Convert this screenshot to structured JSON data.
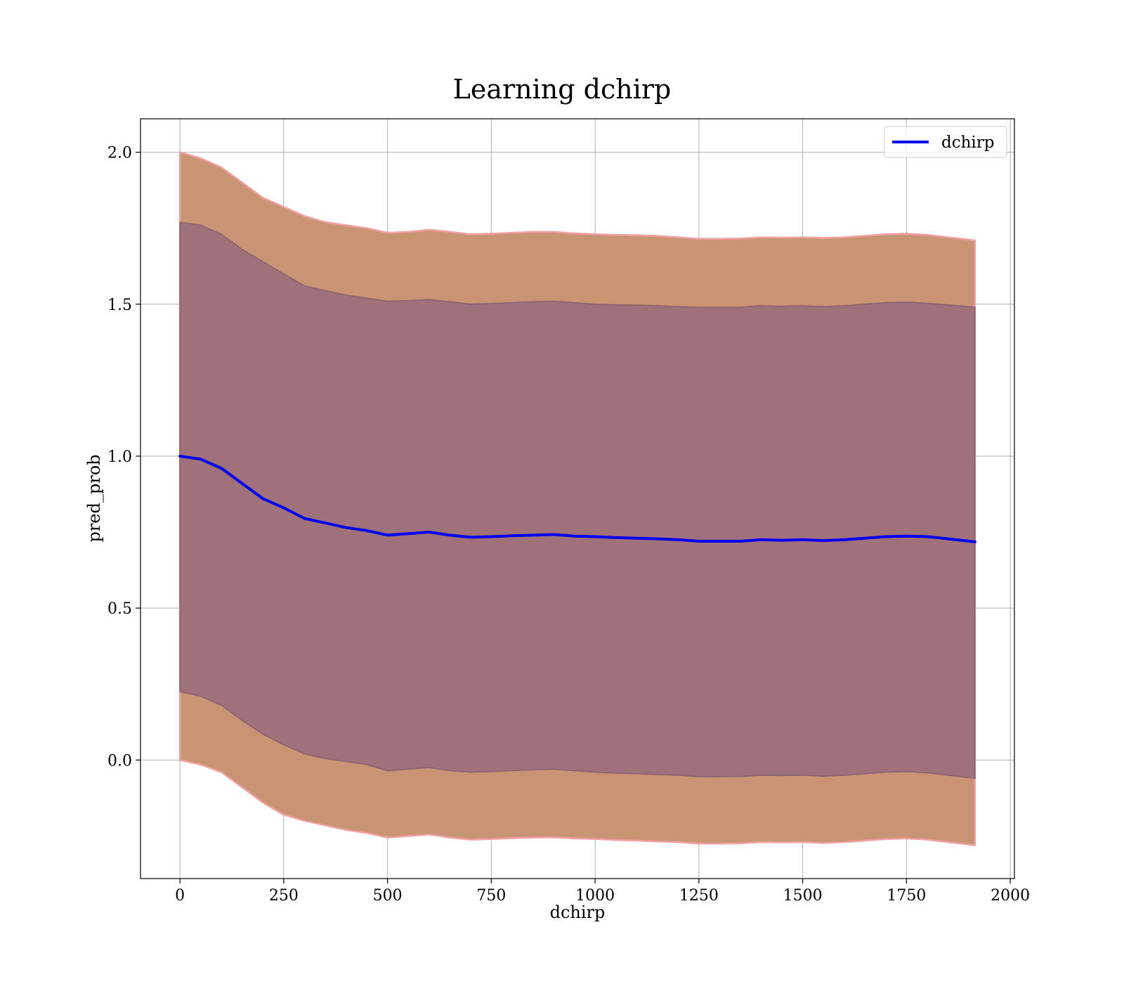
{
  "chart_data": {
    "type": "line",
    "title": "Learning dchirp",
    "xlabel": "dchirp",
    "ylabel": "pred_prob",
    "xlim": [
      -95,
      2010
    ],
    "ylim": [
      -0.39,
      2.11
    ],
    "xticks": [
      0,
      250,
      500,
      750,
      1000,
      1250,
      1500,
      1750,
      2000
    ],
    "yticks": [
      0.0,
      0.5,
      1.0,
      1.5,
      2.0
    ],
    "xtick_labels": [
      "0",
      "250",
      "500",
      "750",
      "1000",
      "1250",
      "1500",
      "1750",
      "2000"
    ],
    "ytick_labels": [
      "0.0",
      "0.5",
      "1.0",
      "1.5",
      "2.0"
    ],
    "grid": true,
    "legend_position": "top-right",
    "x": [
      0,
      50,
      100,
      150,
      200,
      250,
      300,
      350,
      400,
      450,
      500,
      550,
      600,
      650,
      700,
      750,
      800,
      850,
      900,
      950,
      1000,
      1050,
      1100,
      1150,
      1200,
      1250,
      1300,
      1350,
      1400,
      1450,
      1500,
      1550,
      1600,
      1650,
      1700,
      1750,
      1800,
      1850,
      1915
    ],
    "series": [
      {
        "name": "dchirp",
        "color": "#0000ee",
        "values": [
          1.0,
          0.99,
          0.96,
          0.91,
          0.86,
          0.83,
          0.795,
          0.78,
          0.765,
          0.755,
          0.74,
          0.745,
          0.75,
          0.74,
          0.733,
          0.735,
          0.738,
          0.74,
          0.742,
          0.737,
          0.735,
          0.732,
          0.73,
          0.728,
          0.725,
          0.72,
          0.72,
          0.72,
          0.725,
          0.723,
          0.725,
          0.722,
          0.725,
          0.73,
          0.735,
          0.737,
          0.735,
          0.728,
          0.718
        ]
      }
    ],
    "bands": [
      {
        "color": "#c99474",
        "upper": [
          2.0,
          1.98,
          1.95,
          1.9,
          1.85,
          1.82,
          1.79,
          1.77,
          1.76,
          1.75,
          1.735,
          1.738,
          1.745,
          1.738,
          1.73,
          1.732,
          1.735,
          1.738,
          1.738,
          1.733,
          1.73,
          1.728,
          1.727,
          1.725,
          1.72,
          1.715,
          1.715,
          1.716,
          1.72,
          1.719,
          1.72,
          1.718,
          1.72,
          1.725,
          1.73,
          1.732,
          1.728,
          1.72,
          1.71
        ],
        "lower": [
          0.0,
          -0.015,
          -0.04,
          -0.09,
          -0.14,
          -0.18,
          -0.2,
          -0.215,
          -0.23,
          -0.24,
          -0.255,
          -0.25,
          -0.245,
          -0.255,
          -0.262,
          -0.26,
          -0.257,
          -0.255,
          -0.254,
          -0.258,
          -0.26,
          -0.263,
          -0.265,
          -0.268,
          -0.27,
          -0.275,
          -0.275,
          -0.274,
          -0.27,
          -0.271,
          -0.27,
          -0.273,
          -0.27,
          -0.265,
          -0.26,
          -0.258,
          -0.262,
          -0.27,
          -0.28
        ]
      },
      {
        "color": "#a0717a",
        "upper": [
          1.77,
          1.76,
          1.73,
          1.68,
          1.64,
          1.6,
          1.56,
          1.545,
          1.53,
          1.52,
          1.51,
          1.512,
          1.515,
          1.508,
          1.5,
          1.502,
          1.505,
          1.508,
          1.51,
          1.505,
          1.5,
          1.498,
          1.497,
          1.495,
          1.492,
          1.49,
          1.49,
          1.49,
          1.495,
          1.493,
          1.495,
          1.492,
          1.495,
          1.5,
          1.505,
          1.507,
          1.503,
          1.498,
          1.49
        ],
        "lower": [
          0.225,
          0.21,
          0.18,
          0.13,
          0.085,
          0.05,
          0.02,
          0.005,
          -0.005,
          -0.015,
          -0.035,
          -0.03,
          -0.025,
          -0.035,
          -0.04,
          -0.038,
          -0.035,
          -0.032,
          -0.03,
          -0.035,
          -0.04,
          -0.043,
          -0.045,
          -0.048,
          -0.05,
          -0.055,
          -0.055,
          -0.054,
          -0.05,
          -0.051,
          -0.05,
          -0.053,
          -0.05,
          -0.045,
          -0.04,
          -0.038,
          -0.042,
          -0.05,
          -0.06
        ]
      }
    ]
  }
}
